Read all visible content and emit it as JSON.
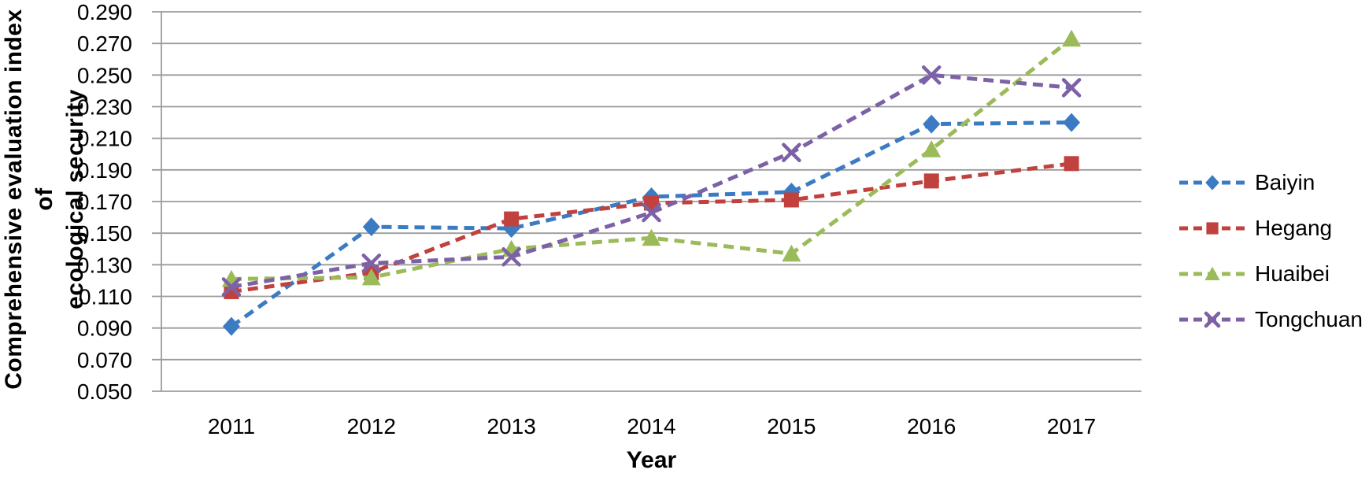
{
  "chart_data": {
    "type": "line",
    "title": "",
    "xlabel": "Year",
    "ylabel": "Comprehensive evaluation index of\necological security",
    "x_categories": [
      "2011",
      "2012",
      "2013",
      "2014",
      "2015",
      "2016",
      "2017"
    ],
    "ylim": [
      0.05,
      0.29
    ],
    "ytick_step": 0.02,
    "ytick_labels": [
      "0.290",
      "0.270",
      "0.250",
      "0.230",
      "0.210",
      "0.190",
      "0.170",
      "0.150",
      "0.130",
      "0.110",
      "0.090",
      "0.070",
      "0.050"
    ],
    "grid": true,
    "line_style": "dashed",
    "legend_position": "right",
    "gridline_color": "#9B9B9B",
    "series": [
      {
        "name": "Baiyin",
        "color": "#3B7BC4",
        "marker": "diamond",
        "values": [
          0.091,
          0.154,
          0.153,
          0.173,
          0.176,
          0.219,
          0.22
        ]
      },
      {
        "name": "Hegang",
        "color": "#C0413D",
        "marker": "square",
        "values": [
          0.113,
          0.125,
          0.159,
          0.169,
          0.171,
          0.183,
          0.194
        ]
      },
      {
        "name": "Huaibei",
        "color": "#9BBB59",
        "marker": "triangle",
        "values": [
          0.121,
          0.122,
          0.14,
          0.147,
          0.137,
          0.203,
          0.273
        ]
      },
      {
        "name": "Tongchuan",
        "color": "#7D61A6",
        "marker": "x",
        "values": [
          0.116,
          0.131,
          0.135,
          0.163,
          0.201,
          0.25,
          0.242
        ]
      }
    ]
  }
}
